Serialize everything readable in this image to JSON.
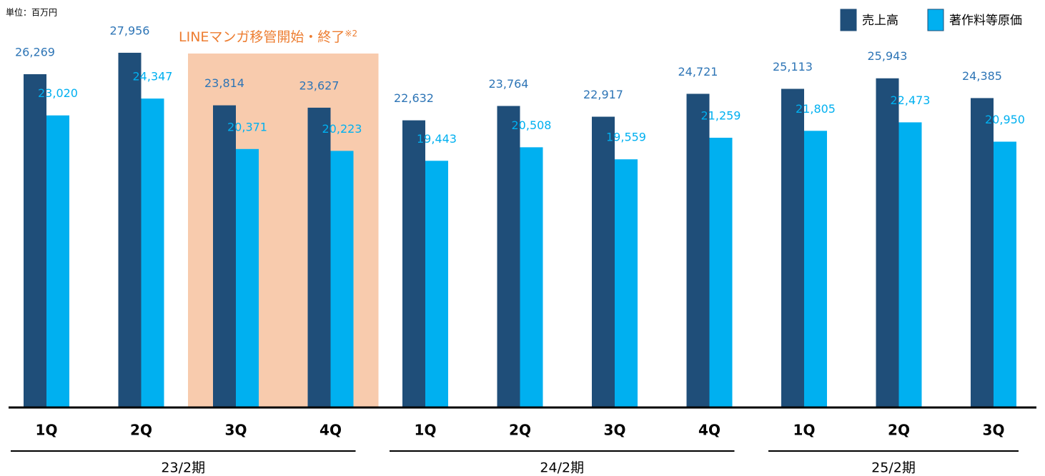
{
  "chart_data": {
    "type": "bar",
    "unit": "単位：百万円",
    "annotation": "LINEマンガ移管開始・終了",
    "annotation_note": "※2",
    "highlight_categories": [
      2,
      3
    ],
    "categories": [
      "1Q",
      "2Q",
      "3Q",
      "4Q",
      "1Q",
      "2Q",
      "3Q",
      "4Q",
      "1Q",
      "2Q",
      "3Q"
    ],
    "groups": [
      {
        "label": "23/2期",
        "start": 0,
        "end": 3
      },
      {
        "label": "24/2期",
        "start": 4,
        "end": 7
      },
      {
        "label": "25/2期",
        "start": 8,
        "end": 10
      }
    ],
    "ylim": [
      0,
      32000
    ],
    "legend": "top-right",
    "series": [
      {
        "name": "売上高",
        "color": "#1f4e79",
        "label_color": "#2e75b6",
        "values": [
          26269,
          27956,
          23814,
          23627,
          22632,
          23764,
          22917,
          24721,
          25113,
          25943,
          24385
        ],
        "value_labels": [
          "26,269",
          "27,956",
          "23,814",
          "23,627",
          "22,632",
          "23,764",
          "22,917",
          "24,721",
          "25,113",
          "25,943",
          "24,385"
        ]
      },
      {
        "name": "著作料等原価",
        "color": "#00b0f0",
        "label_color": "#00b0f0",
        "values": [
          23020,
          24347,
          20371,
          20223,
          19443,
          20508,
          19559,
          21259,
          21805,
          22473,
          20950
        ],
        "value_labels": [
          "23,020",
          "24,347",
          "20,371",
          "20,223",
          "19,443",
          "20,508",
          "19,559",
          "21,259",
          "21,805",
          "22,473",
          "20,950"
        ]
      }
    ]
  }
}
